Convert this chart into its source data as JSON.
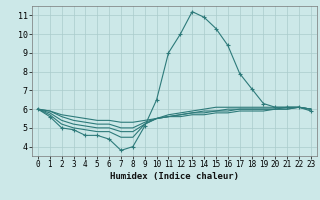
{
  "xlabel": "Humidex (Indice chaleur)",
  "bg_color": "#cce8e8",
  "grid_color": "#aacccc",
  "line_color": "#2d7a7a",
  "xlim": [
    -0.5,
    23.5
  ],
  "ylim": [
    3.5,
    11.5
  ],
  "xticks": [
    0,
    1,
    2,
    3,
    4,
    5,
    6,
    7,
    8,
    9,
    10,
    11,
    12,
    13,
    14,
    15,
    16,
    17,
    18,
    19,
    20,
    21,
    22,
    23
  ],
  "yticks": [
    4,
    5,
    6,
    7,
    8,
    9,
    10,
    11
  ],
  "lines": [
    [
      6.0,
      5.6,
      5.0,
      4.9,
      4.6,
      4.6,
      4.4,
      3.8,
      4.0,
      5.1,
      6.5,
      9.0,
      10.0,
      11.2,
      10.9,
      10.3,
      9.4,
      7.9,
      7.1,
      6.3,
      6.1,
      6.1,
      6.1,
      5.9
    ],
    [
      6.0,
      5.7,
      5.2,
      5.0,
      4.9,
      4.8,
      4.8,
      4.5,
      4.5,
      5.2,
      5.5,
      5.7,
      5.8,
      5.9,
      6.0,
      6.1,
      6.1,
      6.1,
      6.1,
      6.1,
      6.1,
      6.1,
      6.1,
      6.0
    ],
    [
      6.0,
      5.8,
      5.4,
      5.2,
      5.1,
      5.0,
      5.0,
      4.8,
      4.8,
      5.2,
      5.5,
      5.6,
      5.7,
      5.8,
      5.9,
      5.9,
      6.0,
      6.0,
      6.0,
      6.0,
      6.0,
      6.0,
      6.1,
      6.0
    ],
    [
      6.0,
      5.9,
      5.6,
      5.4,
      5.3,
      5.2,
      5.2,
      5.0,
      5.0,
      5.3,
      5.5,
      5.6,
      5.7,
      5.8,
      5.8,
      5.9,
      5.9,
      6.0,
      6.0,
      6.0,
      6.0,
      6.1,
      6.1,
      6.0
    ],
    [
      6.0,
      5.9,
      5.7,
      5.6,
      5.5,
      5.4,
      5.4,
      5.3,
      5.3,
      5.4,
      5.5,
      5.6,
      5.6,
      5.7,
      5.7,
      5.8,
      5.8,
      5.9,
      5.9,
      5.9,
      6.0,
      6.0,
      6.1,
      6.0
    ]
  ],
  "marker_line_idx": 0,
  "marker": "+",
  "marker_size": 3,
  "linewidth": 0.8,
  "xlabel_fontsize": 6.5,
  "tick_fontsize": 5.5
}
